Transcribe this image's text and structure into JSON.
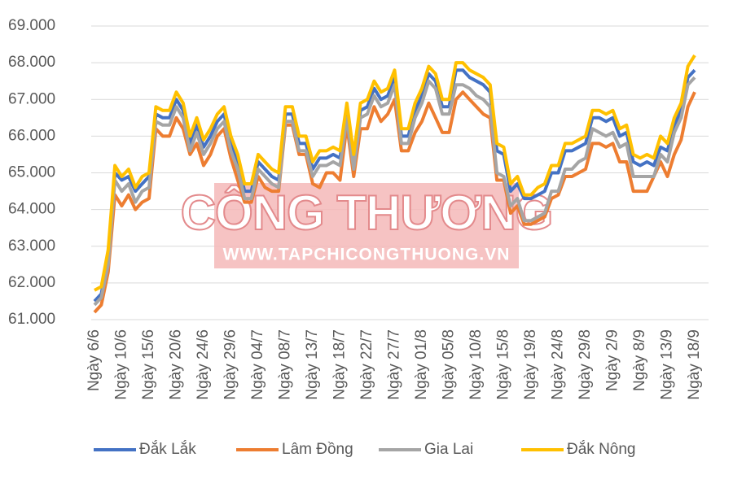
{
  "chart_data": {
    "type": "line",
    "categories": [
      "Ngày 6/6",
      null,
      null,
      null,
      "Ngày 10/6",
      null,
      null,
      null,
      "Ngày 15/6",
      null,
      null,
      null,
      "Ngày 20/6",
      null,
      null,
      null,
      "Ngày 24/6",
      null,
      null,
      null,
      "Ngày 29/6",
      null,
      null,
      null,
      "Ngày 04/7",
      null,
      null,
      null,
      "Ngày 08/7",
      null,
      null,
      null,
      "Ngày 13/7",
      null,
      null,
      null,
      "Ngày 18/7",
      null,
      null,
      null,
      "Ngày 22/7",
      null,
      null,
      null,
      "Ngày 27/7",
      null,
      null,
      null,
      "Ngày 01/8",
      null,
      null,
      null,
      "Ngày 05/8",
      null,
      null,
      null,
      "Ngày 10/8",
      null,
      null,
      null,
      "Ngày 15/8",
      null,
      null,
      null,
      "Ngày 19/8",
      null,
      null,
      null,
      "Ngày 24/8",
      null,
      null,
      null,
      "Ngày 29/8",
      null,
      null,
      null,
      "Ngày 2/9",
      null,
      null,
      null,
      "Ngày 8/9",
      null,
      null,
      null,
      "Ngày 13/9",
      null,
      null,
      null,
      "Ngày 18/9"
    ],
    "series": [
      {
        "name": "Đắk Lắk",
        "color": "#4472c4",
        "values": [
          61500,
          61700,
          62700,
          65000,
          64800,
          64900,
          64500,
          64700,
          64900,
          66600,
          66500,
          66500,
          67000,
          66700,
          65800,
          66300,
          65700,
          66000,
          66400,
          66600,
          65800,
          65300,
          64500,
          64500,
          65300,
          65100,
          64900,
          64800,
          66600,
          66600,
          65800,
          65800,
          65100,
          65400,
          65400,
          65500,
          65400,
          66700,
          65300,
          66700,
          66800,
          67300,
          67000,
          67100,
          67600,
          66000,
          66000,
          66700,
          67100,
          67700,
          67500,
          66800,
          66800,
          67800,
          67800,
          67600,
          67500,
          67400,
          67200,
          65600,
          65500,
          64500,
          64700,
          64300,
          64300,
          64400,
          64500,
          65000,
          65000,
          65600,
          65600,
          65700,
          65800,
          66500,
          66500,
          66400,
          66500,
          66000,
          66100,
          65300,
          65200,
          65300,
          65200,
          65700,
          65600,
          66300,
          66700,
          67600,
          67800
        ]
      },
      {
        "name": "Lâm Đồng",
        "color": "#ed7d31",
        "values": [
          61200,
          61400,
          62300,
          64400,
          64100,
          64400,
          64000,
          64200,
          64300,
          66200,
          66000,
          66000,
          66500,
          66200,
          65500,
          65800,
          65200,
          65500,
          66000,
          66200,
          65400,
          64800,
          64200,
          64200,
          64900,
          64600,
          64500,
          64500,
          66300,
          66300,
          65500,
          65500,
          64700,
          64600,
          65000,
          65000,
          64800,
          66300,
          64900,
          66200,
          66200,
          66800,
          66400,
          66600,
          67000,
          65600,
          65600,
          66100,
          66400,
          66900,
          66500,
          66100,
          66100,
          67000,
          67200,
          67000,
          66800,
          66600,
          66500,
          64800,
          64800,
          63900,
          64100,
          63600,
          63600,
          63700,
          63800,
          64300,
          64400,
          64900,
          64900,
          65000,
          65100,
          65800,
          65800,
          65700,
          65800,
          65300,
          65300,
          64500,
          64500,
          64500,
          64900,
          65300,
          64900,
          65500,
          65900,
          66800,
          67200
        ]
      },
      {
        "name": "Gia Lai",
        "color": "#a5a5a5",
        "values": [
          61400,
          61600,
          62500,
          64800,
          64500,
          64700,
          64200,
          64500,
          64600,
          66400,
          66300,
          66300,
          66800,
          66500,
          65600,
          66100,
          65500,
          65800,
          66200,
          66400,
          65600,
          65100,
          64300,
          64300,
          65100,
          64900,
          64700,
          64600,
          66400,
          66400,
          65600,
          65600,
          64900,
          65200,
          65200,
          65300,
          65200,
          66500,
          65100,
          66500,
          66600,
          67100,
          66800,
          66900,
          67400,
          65800,
          65800,
          66500,
          66900,
          67500,
          67300,
          66600,
          66600,
          67400,
          67400,
          67300,
          67100,
          67000,
          66800,
          65000,
          64900,
          64100,
          64300,
          63700,
          63700,
          63800,
          63900,
          64500,
          64500,
          65100,
          65100,
          65300,
          65400,
          66200,
          66100,
          66000,
          66100,
          65700,
          65800,
          64900,
          64900,
          64900,
          64900,
          65500,
          65300,
          66100,
          66500,
          67400,
          67600
        ]
      },
      {
        "name": "Đắk Nông",
        "color": "#ffc000",
        "values": [
          61800,
          61900,
          62900,
          65200,
          64900,
          65100,
          64600,
          64900,
          65000,
          66800,
          66700,
          66700,
          67200,
          66900,
          66000,
          66500,
          65900,
          66200,
          66600,
          66800,
          66000,
          65500,
          64700,
          64700,
          65500,
          65300,
          65100,
          65000,
          66800,
          66800,
          66000,
          66000,
          65300,
          65600,
          65600,
          65700,
          65600,
          66900,
          65500,
          66900,
          67000,
          67500,
          67200,
          67300,
          67800,
          66200,
          66200,
          66900,
          67300,
          67900,
          67700,
          67000,
          67000,
          68000,
          68000,
          67800,
          67700,
          67600,
          67400,
          65800,
          65700,
          64700,
          64900,
          64400,
          64400,
          64600,
          64700,
          65200,
          65200,
          65800,
          65800,
          65900,
          66000,
          66700,
          66700,
          66600,
          66700,
          66200,
          66300,
          65500,
          65400,
          65500,
          65400,
          66000,
          65800,
          66500,
          66900,
          67900,
          68200
        ]
      }
    ],
    "ylim": [
      61000,
      69000
    ],
    "yticks": [
      {
        "value": 61000,
        "label": "61.000"
      },
      {
        "value": 62000,
        "label": "62.000"
      },
      {
        "value": 63000,
        "label": "63.000"
      },
      {
        "value": 64000,
        "label": "64.000"
      },
      {
        "value": 65000,
        "label": "65.000"
      },
      {
        "value": 66000,
        "label": "66.000"
      },
      {
        "value": 67000,
        "label": "67.000"
      },
      {
        "value": 68000,
        "label": "68.000"
      },
      {
        "value": 69000,
        "label": "69.000"
      }
    ],
    "grid": true,
    "legend": "bottom",
    "watermark_title": "CÔNG THƯƠNG",
    "watermark_url": "WWW.TAPCHICONGTHUONG.VN"
  }
}
